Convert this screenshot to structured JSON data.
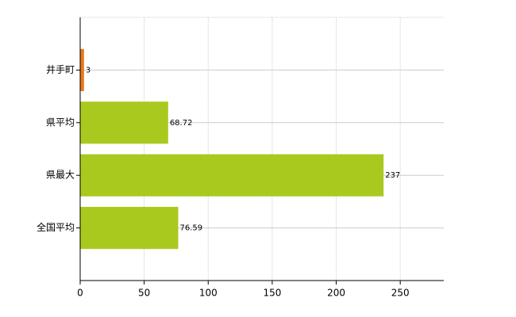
{
  "chart_data": {
    "type": "bar",
    "orientation": "horizontal",
    "categories": [
      "井手町",
      "県平均",
      "県最大",
      "全国平均"
    ],
    "values": [
      3,
      68.72,
      237,
      76.59
    ],
    "colors": [
      "#e8781e",
      "#a9c91f",
      "#a9c91f",
      "#a9c91f"
    ],
    "xlim": [
      0,
      284
    ],
    "xticks": [
      0,
      50,
      100,
      150,
      200,
      250
    ],
    "grid": true
  }
}
